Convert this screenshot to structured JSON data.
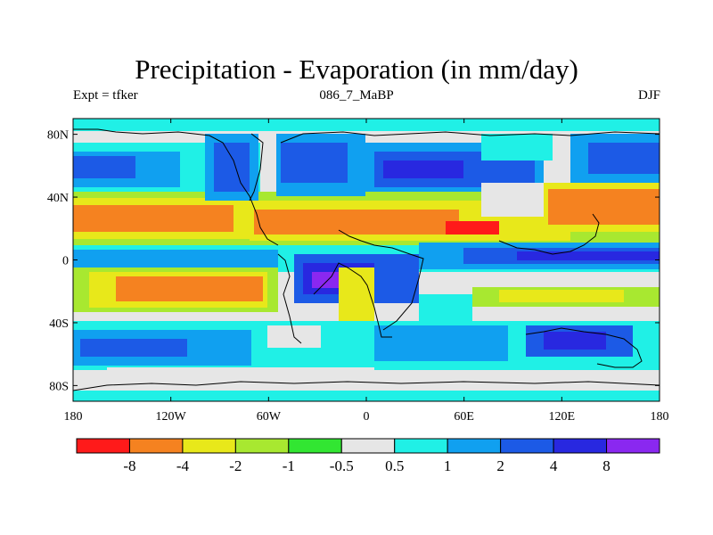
{
  "title": "Precipitation - Evaporation (in mm/day)",
  "expt": "Expt = tfker",
  "case": "086_7_MaBP",
  "season": "DJF",
  "x_ticks": [
    "180",
    "120W",
    "60W",
    "0",
    "60E",
    "120E",
    "180"
  ],
  "y_ticks": [
    "80N",
    "40N",
    "0",
    "40S",
    "80S"
  ],
  "colorbar": {
    "colors": [
      "#ff1a1a",
      "#f58220",
      "#e8e81a",
      "#a8e830",
      "#32e632",
      "#e6e6e6",
      "#20f0e6",
      "#10a0f0",
      "#1c5ae6",
      "#2828e0",
      "#8a28f0"
    ],
    "labels": [
      "-8",
      "-4",
      "-2",
      "-1",
      "-0.5",
      "0.5",
      "1",
      "2",
      "4",
      "8"
    ]
  }
}
